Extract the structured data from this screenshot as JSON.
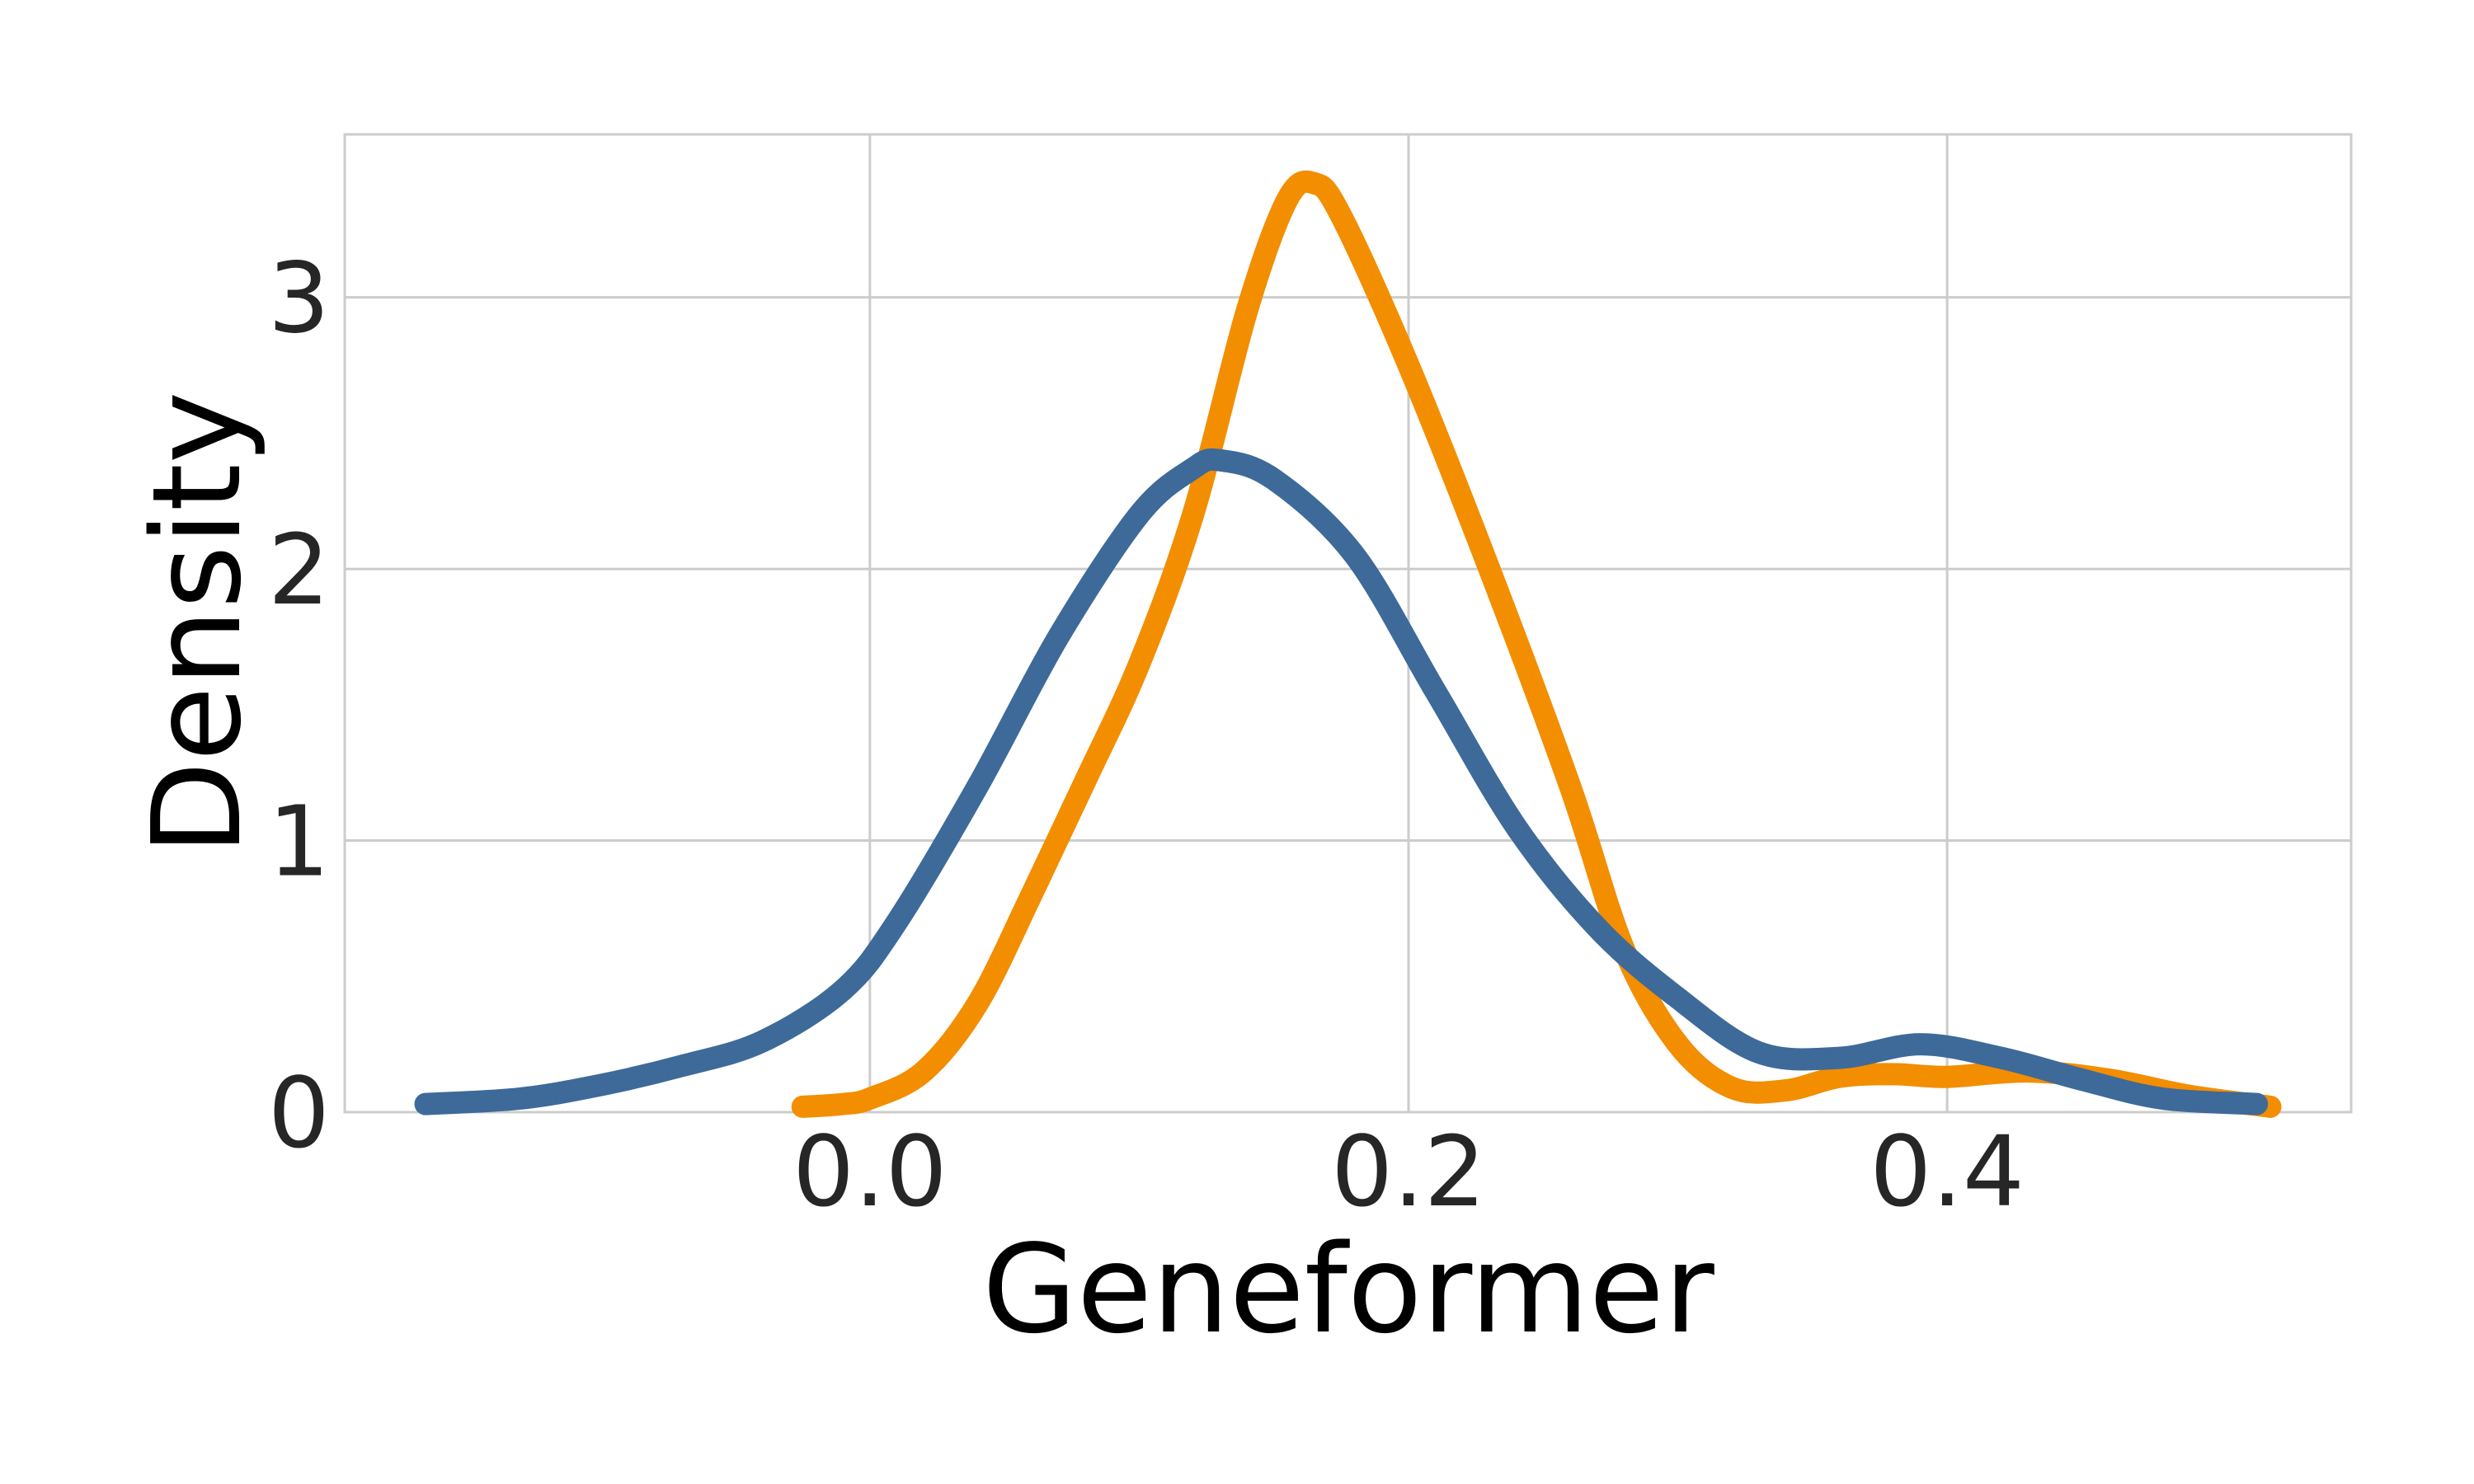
{
  "chart_data": {
    "type": "line",
    "title": "",
    "xlabel": "Geneformer",
    "ylabel": "Density",
    "xlim": [
      -0.195,
      0.55
    ],
    "ylim": [
      0,
      3.6
    ],
    "grid": true,
    "legend": "none",
    "x_ticks": [
      0.0,
      0.2,
      0.4
    ],
    "x_tick_labels": [
      "0.0",
      "0.2",
      "0.4"
    ],
    "y_ticks": [
      0,
      1,
      2,
      3
    ],
    "y_tick_labels": [
      "0",
      "1",
      "2",
      "3"
    ],
    "series": [
      {
        "color": "#f28e00",
        "points": [
          [
            -0.025,
            0.02
          ],
          [
            -0.01,
            0.03
          ],
          [
            0.0,
            0.05
          ],
          [
            0.02,
            0.15
          ],
          [
            0.04,
            0.4
          ],
          [
            0.06,
            0.8
          ],
          [
            0.08,
            1.22
          ],
          [
            0.1,
            1.65
          ],
          [
            0.12,
            2.2
          ],
          [
            0.14,
            2.95
          ],
          [
            0.155,
            3.36
          ],
          [
            0.165,
            3.42
          ],
          [
            0.175,
            3.3
          ],
          [
            0.2,
            2.75
          ],
          [
            0.23,
            2.0
          ],
          [
            0.26,
            1.2
          ],
          [
            0.28,
            0.6
          ],
          [
            0.3,
            0.25
          ],
          [
            0.32,
            0.09
          ],
          [
            0.34,
            0.08
          ],
          [
            0.36,
            0.13
          ],
          [
            0.38,
            0.14
          ],
          [
            0.4,
            0.13
          ],
          [
            0.43,
            0.15
          ],
          [
            0.46,
            0.12
          ],
          [
            0.49,
            0.06
          ],
          [
            0.52,
            0.02
          ]
        ]
      },
      {
        "color": "#3d6a99",
        "points": [
          [
            -0.165,
            0.03
          ],
          [
            -0.13,
            0.05
          ],
          [
            -0.1,
            0.1
          ],
          [
            -0.07,
            0.17
          ],
          [
            -0.04,
            0.26
          ],
          [
            -0.01,
            0.45
          ],
          [
            0.01,
            0.7
          ],
          [
            0.04,
            1.2
          ],
          [
            0.07,
            1.75
          ],
          [
            0.1,
            2.2
          ],
          [
            0.12,
            2.37
          ],
          [
            0.13,
            2.4
          ],
          [
            0.15,
            2.33
          ],
          [
            0.18,
            2.05
          ],
          [
            0.21,
            1.55
          ],
          [
            0.24,
            1.05
          ],
          [
            0.27,
            0.68
          ],
          [
            0.3,
            0.42
          ],
          [
            0.33,
            0.22
          ],
          [
            0.36,
            0.2
          ],
          [
            0.39,
            0.25
          ],
          [
            0.42,
            0.2
          ],
          [
            0.45,
            0.12
          ],
          [
            0.48,
            0.05
          ],
          [
            0.515,
            0.03
          ]
        ]
      }
    ]
  }
}
